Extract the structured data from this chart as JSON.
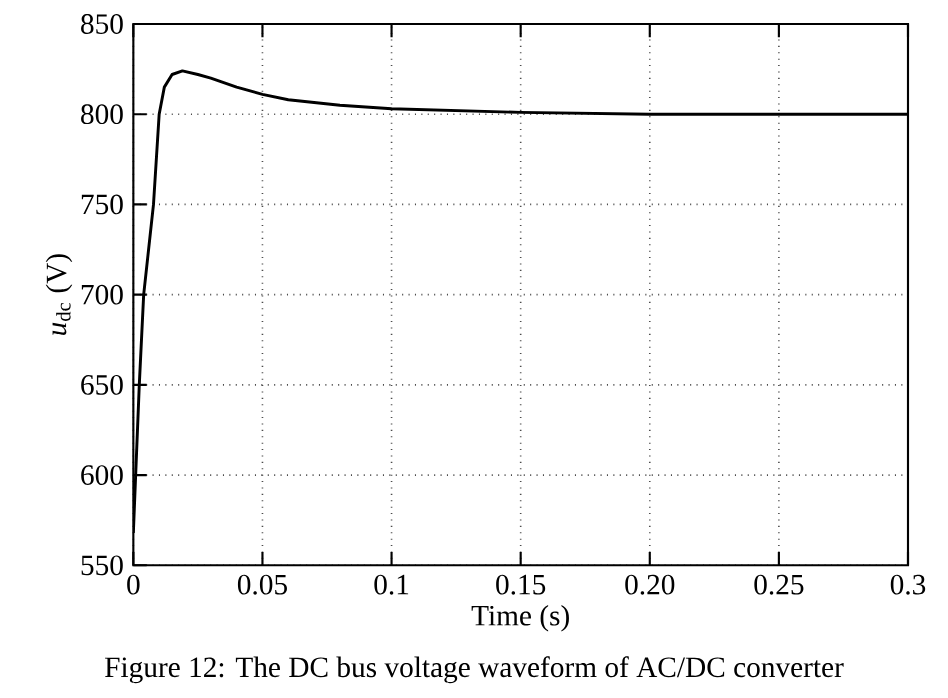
{
  "chart_data": {
    "type": "line",
    "xlabel": "Time (s)",
    "ylabel": "*u*$_{dc}$ (V)",
    "annotations": [
      "Figure 12: The DC bus voltage waveform of AC/DC converter"
    ],
    "x": [
      0,
      0.0023,
      0.004,
      0.0078,
      0.01,
      0.012,
      0.015,
      0.019,
      0.025,
      0.03,
      0.04,
      0.05,
      0.06,
      0.08,
      0.1,
      0.15,
      0.2,
      0.3
    ],
    "series": [
      {
        "color": "#000000",
        "values": [
          568,
          650,
          700,
          750,
          800,
          815,
          822,
          824,
          822,
          820,
          815,
          811,
          808,
          805,
          803,
          801,
          800,
          800
        ]
      }
    ],
    "xlim": [
      0,
      0.3
    ],
    "ylim": [
      550,
      850
    ],
    "xticks": [
      0,
      0.05,
      0.1,
      0.15,
      {
        "value": 0.2,
        "label": "0.20"
      },
      0.25,
      0.3
    ],
    "yticks": [
      550,
      600,
      650,
      700,
      750,
      800,
      850
    ],
    "grid": true,
    "line_style": "solid",
    "marker": "none"
  }
}
